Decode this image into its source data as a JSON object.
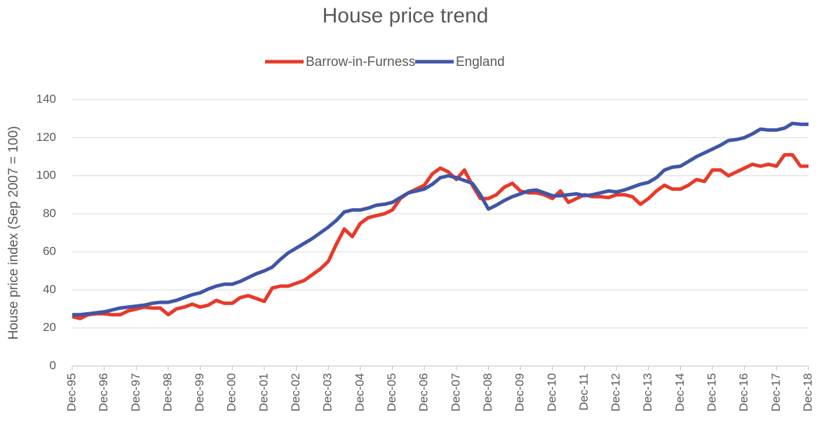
{
  "chart_data": {
    "type": "line",
    "title": "House price trend",
    "y_label": "House price index (Sep 2007 = 100)",
    "categories": [
      "Dec-95",
      null,
      null,
      null,
      "Dec-96",
      null,
      null,
      null,
      "Dec-97",
      null,
      null,
      null,
      "Dec-98",
      null,
      null,
      null,
      "Dec-99",
      null,
      null,
      null,
      "Dec-00",
      null,
      null,
      null,
      "Dec-01",
      null,
      null,
      null,
      "Dec-02",
      null,
      null,
      null,
      "Dec-03",
      null,
      null,
      null,
      "Dec-04",
      null,
      null,
      null,
      "Dec-05",
      null,
      null,
      null,
      "Dec-06",
      null,
      null,
      null,
      "Dec-07",
      null,
      null,
      null,
      "Dec-08",
      null,
      null,
      null,
      "Dec-09",
      null,
      null,
      null,
      "Dec-10",
      null,
      null,
      null,
      "Dec-11",
      null,
      null,
      null,
      "Dec-12",
      null,
      null,
      null,
      "Dec-13",
      null,
      null,
      null,
      "Dec-14",
      null,
      null,
      null,
      "Dec-15",
      null,
      null,
      null,
      "Dec-16",
      null,
      null,
      null,
      "Dec-17",
      null,
      null,
      null,
      "Dec-18"
    ],
    "series": [
      {
        "name": "Barrow-in-Furness",
        "color": "#e8392a",
        "values": [
          26,
          25,
          27,
          27.5,
          27.5,
          27,
          27,
          29,
          30,
          31,
          30.5,
          30.5,
          27,
          30,
          31,
          32.5,
          31,
          32,
          34.5,
          33,
          33,
          36,
          37,
          35.5,
          34,
          41,
          42,
          42,
          43.5,
          45,
          48,
          51,
          55,
          64,
          72,
          68,
          75,
          78,
          79,
          80,
          82,
          88,
          91,
          93,
          95,
          101,
          104,
          102,
          98,
          103,
          95,
          88,
          88,
          90,
          94,
          96,
          92,
          91,
          91,
          90,
          88,
          92,
          86,
          88,
          90,
          89,
          89,
          88.5,
          90,
          90,
          89,
          85,
          88,
          92,
          95,
          93,
          93,
          95,
          98,
          97,
          103,
          103,
          100,
          102,
          104,
          106,
          105,
          106,
          105,
          111,
          111,
          105,
          105
        ]
      },
      {
        "name": "England",
        "color": "#3f56a6",
        "values": [
          27,
          27,
          27.5,
          28,
          28.5,
          29.5,
          30.5,
          31,
          31.5,
          32,
          33,
          33.5,
          33.5,
          34.5,
          36,
          37.5,
          38.5,
          40.5,
          42,
          43,
          43,
          44.5,
          46.5,
          48.5,
          50,
          52,
          56,
          59.5,
          62,
          64.5,
          67,
          70,
          73,
          76.5,
          81,
          82,
          82,
          83,
          84.5,
          85,
          86,
          88.5,
          91,
          92,
          93,
          95.5,
          99,
          100,
          99,
          97.5,
          96,
          90,
          82.5,
          84.5,
          87,
          89,
          90.5,
          92,
          92.5,
          91,
          89.5,
          89.5,
          90,
          90.5,
          89.5,
          90,
          91,
          92,
          91.5,
          92.5,
          94,
          95.5,
          96.5,
          99,
          103,
          104.5,
          105,
          107.5,
          110,
          112,
          114,
          116,
          118.5,
          119,
          120,
          122,
          124.5,
          124,
          124,
          125,
          127.5,
          127,
          127
        ]
      }
    ],
    "ylim": [
      0,
      140
    ],
    "yticks": [
      0,
      20,
      40,
      60,
      80,
      100,
      120,
      140
    ],
    "grid": true,
    "legend": "top"
  }
}
